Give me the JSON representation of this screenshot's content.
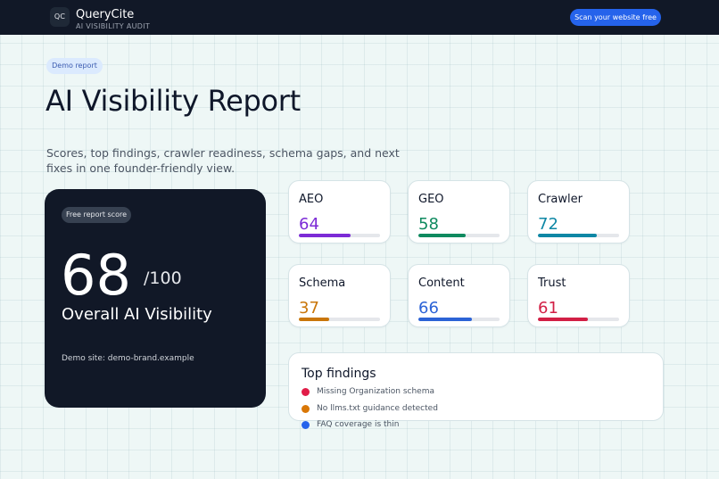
{
  "header": {
    "logo_text": "QC",
    "brand": "QueryCite",
    "subtitle": "AI VISIBILITY AUDIT",
    "cta_label": "Scan your website free"
  },
  "hero": {
    "badge": "Demo report",
    "title": "AI Visibility Report",
    "description": "Scores, top findings, crawler readiness, schema gaps, and next fixes in one founder-friendly view."
  },
  "score": {
    "badge": "Free report score",
    "value": "68",
    "max": "/100",
    "label": "Overall AI Visibility",
    "site": "Demo site: demo-brand.example"
  },
  "metrics": [
    {
      "name": "AEO",
      "value": "64",
      "percent": 64,
      "color": "#7c2bd6"
    },
    {
      "name": "GEO",
      "value": "58",
      "percent": 58,
      "color": "#0f8a5f"
    },
    {
      "name": "Crawler",
      "value": "72",
      "percent": 72,
      "color": "#0e87a5"
    },
    {
      "name": "Schema",
      "value": "37",
      "percent": 37,
      "color": "#c9760a"
    },
    {
      "name": "Content",
      "value": "66",
      "percent": 66,
      "color": "#2c63d6"
    },
    {
      "name": "Trust",
      "value": "61",
      "percent": 61,
      "color": "#d21f45"
    }
  ],
  "findings": {
    "title": "Top findings",
    "items": [
      {
        "text": "Missing Organization schema",
        "color": "#e11d48"
      },
      {
        "text": "No llms.txt guidance detected",
        "color": "#d97706"
      },
      {
        "text": "FAQ coverage is thin",
        "color": "#2563eb"
      }
    ]
  }
}
